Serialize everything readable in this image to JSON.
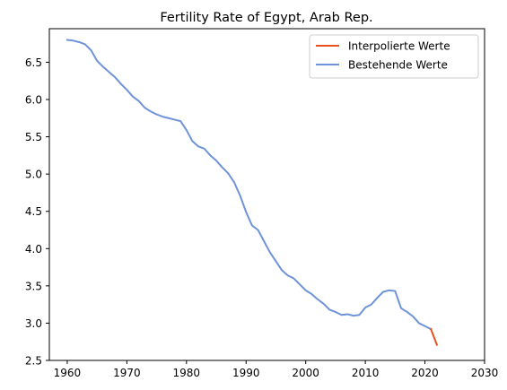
{
  "chart_data": {
    "type": "line",
    "title": "Fertility Rate of Egypt, Arab Rep.",
    "xlabel": "",
    "ylabel": "",
    "xlim": [
      1957,
      2030
    ],
    "ylim": [
      2.5,
      6.95
    ],
    "xticks": [
      1960,
      1970,
      1980,
      1990,
      2000,
      2010,
      2020,
      2030
    ],
    "yticks": [
      2.5,
      3.0,
      3.5,
      4.0,
      4.5,
      5.0,
      5.5,
      6.0,
      6.5
    ],
    "grid": false,
    "legend_position": "top-right",
    "series": [
      {
        "name": "Interpolierte Werte",
        "color": "#e8501e",
        "x": [
          2021,
          2022
        ],
        "y": [
          2.92,
          2.71
        ]
      },
      {
        "name": "Bestehende Werte",
        "color": "#6f93d8",
        "x": [
          1960,
          1961,
          1962,
          1963,
          1964,
          1965,
          1966,
          1967,
          1968,
          1969,
          1970,
          1971,
          1972,
          1973,
          1974,
          1975,
          1976,
          1977,
          1978,
          1979,
          1980,
          1981,
          1982,
          1983,
          1984,
          1985,
          1986,
          1987,
          1988,
          1989,
          1990,
          1991,
          1992,
          1993,
          1994,
          1995,
          1996,
          1997,
          1998,
          1999,
          2000,
          2001,
          2002,
          2003,
          2004,
          2005,
          2006,
          2007,
          2008,
          2009,
          2010,
          2011,
          2012,
          2013,
          2014,
          2015,
          2016,
          2017,
          2018,
          2019,
          2020,
          2021
        ],
        "y": [
          6.8,
          6.79,
          6.77,
          6.74,
          6.66,
          6.52,
          6.44,
          6.37,
          6.3,
          6.21,
          6.13,
          6.04,
          5.98,
          5.89,
          5.84,
          5.8,
          5.77,
          5.75,
          5.73,
          5.71,
          5.59,
          5.44,
          5.37,
          5.34,
          5.25,
          5.18,
          5.09,
          5.01,
          4.89,
          4.71,
          4.49,
          4.31,
          4.25,
          4.1,
          3.95,
          3.83,
          3.71,
          3.64,
          3.6,
          3.52,
          3.44,
          3.39,
          3.32,
          3.26,
          3.18,
          3.15,
          3.11,
          3.12,
          3.1,
          3.11,
          3.21,
          3.25,
          3.34,
          3.42,
          3.44,
          3.43,
          3.2,
          3.15,
          3.09,
          3.0,
          2.96,
          2.92
        ]
      }
    ]
  }
}
